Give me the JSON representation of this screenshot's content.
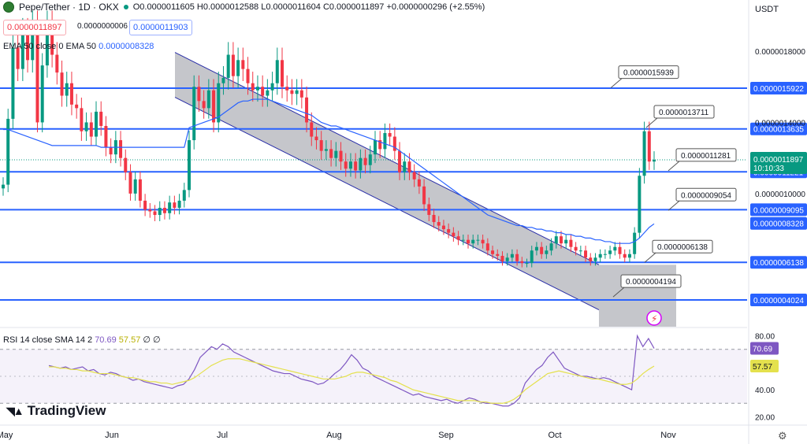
{
  "header": {
    "symbol": "Pepe/Tether · 1D · OKX",
    "ohlc": "O0.0000011605 H0.0000012588 L0.0000011604 C0.0000011897 +0.0000000296 (+2.55%)",
    "bid": "0.0000011897",
    "spread": "0.0000000006",
    "ask": "0.0000011903"
  },
  "currency": "USDT",
  "ema_legend": {
    "label": "EMA 50 close 0 EMA 50",
    "value": "0.0000008328"
  },
  "rsi_legend": {
    "label": "RSI 14 close SMA 14 2",
    "rsi": "70.69",
    "sma": "57.57",
    "rest": "∅ ∅"
  },
  "logo": {
    "text": "TradingView",
    "icon": "tradingview-logo-icon"
  },
  "colors": {
    "up": "#089981",
    "down": "#f23645",
    "level": "#2962ff",
    "ema": "#2962ff",
    "rsi": "#7e57c2",
    "rsi_sma": "#e4e14d",
    "channel": "#b2b5be"
  },
  "chart_data": {
    "type": "candlestick",
    "price_axis_ticks": [
      "0.0000018000",
      "0.0000014000",
      "0.0000010000"
    ],
    "x_ticks": [
      "May",
      "Jun",
      "Jul",
      "Aug",
      "Sep",
      "Oct",
      "Nov"
    ],
    "levels": [
      {
        "value": "0.0000015922",
        "y": 1.5922e-06
      },
      {
        "value": "0.0000013635",
        "y": 1.3635e-06
      },
      {
        "value": "0.0000011221",
        "y": 1.1221e-06
      },
      {
        "value": "0.0000009095",
        "y": 9.095e-07
      },
      {
        "value": "0.0000006138",
        "y": 6.138e-07
      },
      {
        "value": "0.0000004024",
        "y": 4.024e-07
      }
    ],
    "callouts": [
      {
        "label": "0.0000015939",
        "y": 1.5939e-06
      },
      {
        "label": "0.0000013711",
        "y": 1.3711e-06
      },
      {
        "label": "0.0000011281",
        "y": 1.1281e-06
      },
      {
        "label": "0.0000009054",
        "y": 9.054e-07
      },
      {
        "label": "0.0000006138",
        "y": 6.138e-07
      },
      {
        "label": "0.0000004194",
        "y": 4.194e-07
      }
    ],
    "current_price": {
      "value": "0.0000011897",
      "y": 1.1897e-06,
      "countdown": "10:10:33"
    },
    "ema_value": {
      "value": "0.0000008328",
      "y": 8.328e-07
    },
    "channel": {
      "upper_start": 1.793e-06,
      "upper_end": 6e-07,
      "lower_start": 1.541e-06,
      "lower_end": 3.47e-07
    },
    "close": [
      1.05e-06,
      1.42e-06,
      1.82e-06,
      1.7e-06,
      1.91e-06,
      1.75e-06,
      1.95e-06,
      1.4e-06,
      1.72e-06,
      1.95e-06,
      1.78e-06,
      1.68e-06,
      1.55e-06,
      1.62e-06,
      1.5e-06,
      1.48e-06,
      1.35e-06,
      1.4e-06,
      1.32e-06,
      1.46e-06,
      1.38e-06,
      1.26e-06,
      1.22e-06,
      1.3e-06,
      1.2e-06,
      1.12e-06,
      1e-06,
      1.08e-06,
      9.6e-07,
      9.1e-07,
      9e-07,
      8.8e-07,
      9.2e-07,
      8.9e-07,
      9.5e-07,
      9.2e-07,
      9.6e-07,
      1.02e-06,
      1.3e-06,
      1.6e-06,
      1.52e-06,
      1.48e-06,
      1.58e-06,
      1.4e-06,
      1.62e-06,
      1.65e-06,
      1.78e-06,
      1.66e-06,
      1.75e-06,
      1.7e-06,
      1.62e-06,
      1.58e-06,
      1.6e-06,
      1.55e-06,
      1.58e-06,
      1.62e-06,
      1.75e-06,
      1.6e-06,
      1.58e-06,
      1.56e-06,
      1.58e-06,
      1.54e-06,
      1.4e-06,
      1.32e-06,
      1.3e-06,
      1.24e-06,
      1.25e-06,
      1.2e-06,
      1.24e-06,
      1.18e-06,
      1.14e-06,
      1.18e-06,
      1.13e-06,
      1.2e-06,
      1.16e-06,
      1.22e-06,
      1.3e-06,
      1.25e-06,
      1.34e-06,
      1.32e-06,
      1.24e-06,
      1.12e-06,
      1.18e-06,
      1.12e-06,
      1.08e-06,
      1.04e-06,
      9.4e-07,
      8.8e-07,
      8.4e-07,
      8.2e-07,
      8e-07,
      7.8e-07,
      7.6e-07,
      7.4e-07,
      7.4e-07,
      7.2e-07,
      7.4e-07,
      7.4e-07,
      7.2e-07,
      6.8e-07,
      6.6e-07,
      6.5e-07,
      6.2e-07,
      6.4e-07,
      6.6e-07,
      6.2e-07,
      6.1e-07,
      6.1e-07,
      6.8e-07,
      7e-07,
      6.6e-07,
      6.8e-07,
      7.2e-07,
      7.6e-07,
      7.2e-07,
      7.4e-07,
      7e-07,
      6.8e-07,
      6.8e-07,
      6.4e-07,
      6.2e-07,
      6.4e-07,
      6.6e-07,
      6.6e-07,
      6.8e-07,
      7e-07,
      6.6e-07,
      6.4e-07,
      6.6e-07,
      7.8e-07,
      1.1e-06,
      1.35e-06,
      1.18e-06,
      1.19e-06
    ],
    "ema": [
      1.36e-06,
      1.36e-06,
      1.35e-06,
      1.34e-06,
      1.33e-06,
      1.32e-06,
      1.31e-06,
      1.3e-06,
      1.29e-06,
      1.28e-06,
      1.27e-06,
      1.27e-06,
      1.27e-06,
      1.27e-06,
      1.27e-06,
      1.27e-06,
      1.27e-06,
      1.27e-06,
      1.27e-06,
      1.27e-06,
      1.26e-06,
      1.26e-06,
      1.26e-06,
      1.26e-06,
      1.26e-06,
      1.26e-06,
      1.26e-06,
      1.26e-06,
      1.26e-06,
      1.26e-06,
      1.26e-06,
      1.26e-06,
      1.26e-06,
      1.26e-06,
      1.26e-06,
      1.26e-06,
      1.26e-06,
      1.26e-06,
      1.37e-06,
      1.38e-06,
      1.39e-06,
      1.4e-06,
      1.41e-06,
      1.42e-06,
      1.43e-06,
      1.45e-06,
      1.47e-06,
      1.49e-06,
      1.51e-06,
      1.52e-06,
      1.52e-06,
      1.53e-06,
      1.53e-06,
      1.53e-06,
      1.53e-06,
      1.52e-06,
      1.51e-06,
      1.5e-06,
      1.49e-06,
      1.48e-06,
      1.47e-06,
      1.46e-06,
      1.45e-06,
      1.44e-06,
      1.42e-06,
      1.4e-06,
      1.39e-06,
      1.38e-06,
      1.38e-06,
      1.37e-06,
      1.36e-06,
      1.35e-06,
      1.34e-06,
      1.33e-06,
      1.32e-06,
      1.31e-06,
      1.3e-06,
      1.29e-06,
      1.28e-06,
      1.27e-06,
      1.26e-06,
      1.24e-06,
      1.22e-06,
      1.2e-06,
      1.18e-06,
      1.16e-06,
      1.14e-06,
      1.12e-06,
      1.1e-06,
      1.08e-06,
      1.06e-06,
      1.04e-06,
      1.02e-06,
      1e-06,
      9.8e-07,
      9.6e-07,
      9.4e-07,
      9.2e-07,
      9e-07,
      8.8e-07,
      8.7e-07,
      8.6e-07,
      8.5e-07,
      8.4e-07,
      8.3e-07,
      8.2e-07,
      8.2e-07,
      8.1e-07,
      8.1e-07,
      8e-07,
      8e-07,
      7.9e-07,
      7.9e-07,
      7.8e-07,
      7.8e-07,
      7.7e-07,
      7.7e-07,
      7.6e-07,
      7.6e-07,
      7.5e-07,
      7.5e-07,
      7.4e-07,
      7.4e-07,
      7.3e-07,
      7.3e-07,
      7.2e-07,
      7.2e-07,
      7.2e-07,
      7.2e-07,
      7.3e-07,
      7.5e-07,
      7.8e-07,
      8.1e-07,
      8.3e-07
    ],
    "rsi": {
      "ticks": [
        "80.00",
        "40.00",
        "20.00"
      ],
      "value": "70.69",
      "value_num": 70.69,
      "sma_value": "57.57",
      "sma_num": 57.57,
      "band_upper": 70,
      "band_lower": 30,
      "rsi_points": [
        58,
        57,
        56,
        57,
        55,
        56,
        57,
        54,
        55,
        52,
        51,
        53,
        52,
        50,
        49,
        47,
        48,
        46,
        45,
        44,
        43,
        42,
        41,
        43,
        44,
        48,
        55,
        64,
        68,
        72,
        70,
        74,
        72,
        68,
        66,
        64,
        62,
        60,
        58,
        56,
        54,
        53,
        52,
        52,
        50,
        48,
        47,
        46,
        44,
        45,
        48,
        52,
        55,
        60,
        66,
        62,
        56,
        54,
        50,
        48,
        46,
        44,
        42,
        40,
        38,
        36,
        37,
        35,
        34,
        33,
        32,
        33,
        31,
        30,
        32,
        34,
        33,
        31,
        30,
        30,
        29,
        28,
        28,
        30,
        34,
        45,
        50,
        55,
        58,
        64,
        68,
        62,
        56,
        54,
        52,
        50,
        50,
        49,
        48,
        49,
        48,
        46,
        44,
        42,
        40,
        80,
        72,
        78,
        70.69
      ],
      "sma_points": [
        57,
        57,
        56,
        56,
        55,
        55,
        54,
        54,
        53,
        52,
        52,
        52,
        51,
        50,
        49,
        49,
        48,
        47,
        46,
        46,
        45,
        45,
        44,
        45,
        46,
        47,
        49,
        52,
        55,
        58,
        60,
        62,
        63,
        63,
        63,
        62,
        61,
        60,
        59,
        58,
        57,
        56,
        55,
        54,
        53,
        52,
        51,
        50,
        49,
        48,
        48,
        48,
        49,
        50,
        52,
        53,
        53,
        52,
        51,
        50,
        49,
        47,
        46,
        44,
        42,
        40,
        39,
        38,
        37,
        36,
        35,
        34,
        33,
        32,
        32,
        32,
        32,
        31,
        31,
        30,
        30,
        30,
        31,
        33,
        36,
        40,
        43,
        46,
        49,
        52,
        53,
        54,
        53,
        52,
        51,
        50,
        49,
        48,
        48,
        47,
        46,
        45,
        44,
        44,
        45,
        48,
        52,
        55,
        57.57
      ]
    }
  }
}
